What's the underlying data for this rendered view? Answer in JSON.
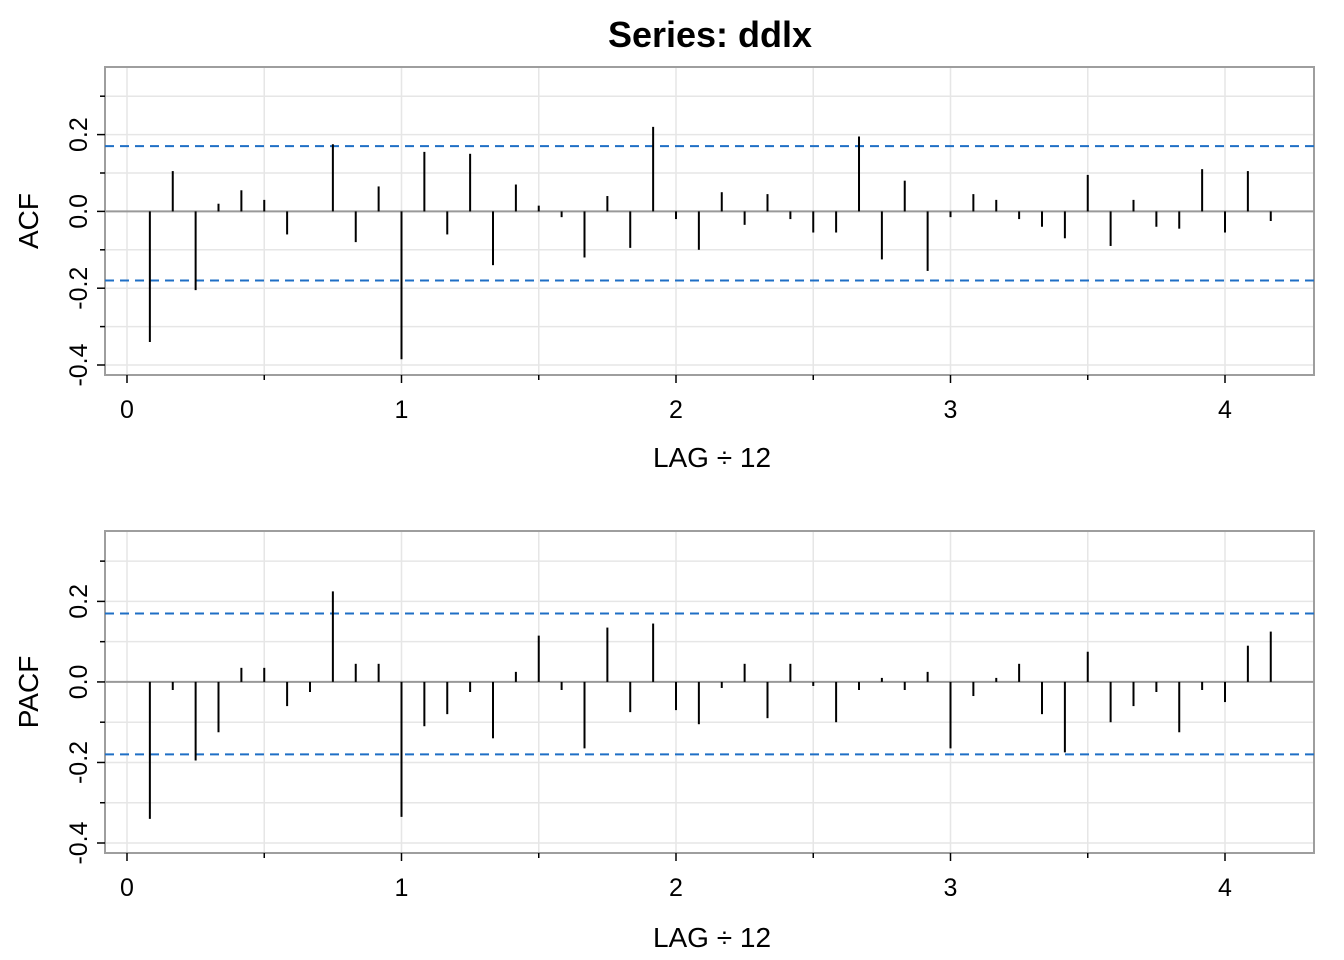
{
  "title": "Series:  ddlx",
  "colors": {
    "bound": "#1f6fc5",
    "grid": "#e6e6e6",
    "frame": "#9e9e9e",
    "zero": "#999999",
    "spike": "#000000"
  },
  "chart_data": [
    {
      "type": "bar",
      "name": "acf-panel",
      "xlabel": "LAG ÷ 12",
      "ylabel": "ACF",
      "xlim": [
        0,
        4.2
      ],
      "ylim": [
        -0.4,
        0.35
      ],
      "xticks": [
        0,
        1,
        2,
        3,
        4
      ],
      "yticks": [
        -0.4,
        -0.2,
        0.0,
        0.2
      ],
      "ytick_labels": [
        "-0.4",
        "-0.2",
        "0.0",
        "0.2"
      ],
      "bounds": [
        0.17,
        -0.18
      ],
      "grid": true,
      "x": [
        0.0833,
        0.1667,
        0.25,
        0.3333,
        0.4167,
        0.5,
        0.5833,
        0.6667,
        0.75,
        0.8333,
        0.9167,
        1.0,
        1.0833,
        1.1667,
        1.25,
        1.3333,
        1.4167,
        1.5,
        1.5833,
        1.6667,
        1.75,
        1.8333,
        1.9167,
        2.0,
        2.0833,
        2.1667,
        2.25,
        2.3333,
        2.4167,
        2.5,
        2.5833,
        2.6667,
        2.75,
        2.8333,
        2.9167,
        3.0,
        3.0833,
        3.1667,
        3.25,
        3.3333,
        3.4167,
        3.5,
        3.5833,
        3.6667,
        3.75,
        3.8333,
        3.9167,
        4.0,
        4.0833,
        4.1667
      ],
      "values": [
        -0.34,
        0.105,
        -0.205,
        0.02,
        0.055,
        0.03,
        -0.06,
        0.0,
        0.175,
        -0.08,
        0.065,
        -0.385,
        0.155,
        -0.06,
        0.15,
        -0.14,
        0.07,
        0.015,
        -0.015,
        -0.12,
        0.04,
        -0.095,
        0.22,
        -0.02,
        -0.1,
        0.05,
        -0.035,
        0.045,
        -0.02,
        -0.055,
        -0.055,
        0.195,
        -0.125,
        0.08,
        -0.155,
        -0.015,
        0.045,
        0.03,
        -0.02,
        -0.04,
        -0.07,
        0.095,
        -0.09,
        0.03,
        -0.04,
        -0.045,
        0.11,
        -0.055,
        0.105,
        -0.025
      ]
    },
    {
      "type": "bar",
      "name": "pacf-panel",
      "xlabel": "LAG ÷ 12",
      "ylabel": "PACF",
      "xlim": [
        0,
        4.2
      ],
      "ylim": [
        -0.4,
        0.35
      ],
      "xticks": [
        0,
        1,
        2,
        3,
        4
      ],
      "yticks": [
        -0.4,
        -0.2,
        0.0,
        0.2
      ],
      "ytick_labels": [
        "-0.4",
        "-0.2",
        "0.0",
        "0.2"
      ],
      "bounds": [
        0.17,
        -0.18
      ],
      "grid": true,
      "x": [
        0.0833,
        0.1667,
        0.25,
        0.3333,
        0.4167,
        0.5,
        0.5833,
        0.6667,
        0.75,
        0.8333,
        0.9167,
        1.0,
        1.0833,
        1.1667,
        1.25,
        1.3333,
        1.4167,
        1.5,
        1.5833,
        1.6667,
        1.75,
        1.8333,
        1.9167,
        2.0,
        2.0833,
        2.1667,
        2.25,
        2.3333,
        2.4167,
        2.5,
        2.5833,
        2.6667,
        2.75,
        2.8333,
        2.9167,
        3.0,
        3.0833,
        3.1667,
        3.25,
        3.3333,
        3.4167,
        3.5,
        3.5833,
        3.6667,
        3.75,
        3.8333,
        3.9167,
        4.0,
        4.0833,
        4.1667
      ],
      "values": [
        -0.34,
        -0.02,
        -0.195,
        -0.125,
        0.035,
        0.035,
        -0.06,
        -0.025,
        0.225,
        0.045,
        0.045,
        -0.335,
        -0.11,
        -0.08,
        -0.025,
        -0.14,
        0.025,
        0.115,
        -0.02,
        -0.165,
        0.135,
        -0.075,
        0.145,
        -0.07,
        -0.105,
        -0.015,
        0.045,
        -0.09,
        0.045,
        -0.01,
        -0.1,
        -0.02,
        0.01,
        -0.02,
        0.025,
        -0.165,
        -0.035,
        0.01,
        0.045,
        -0.08,
        -0.175,
        0.075,
        -0.1,
        -0.06,
        -0.025,
        -0.125,
        -0.02,
        -0.05,
        0.09,
        0.125
      ]
    }
  ]
}
